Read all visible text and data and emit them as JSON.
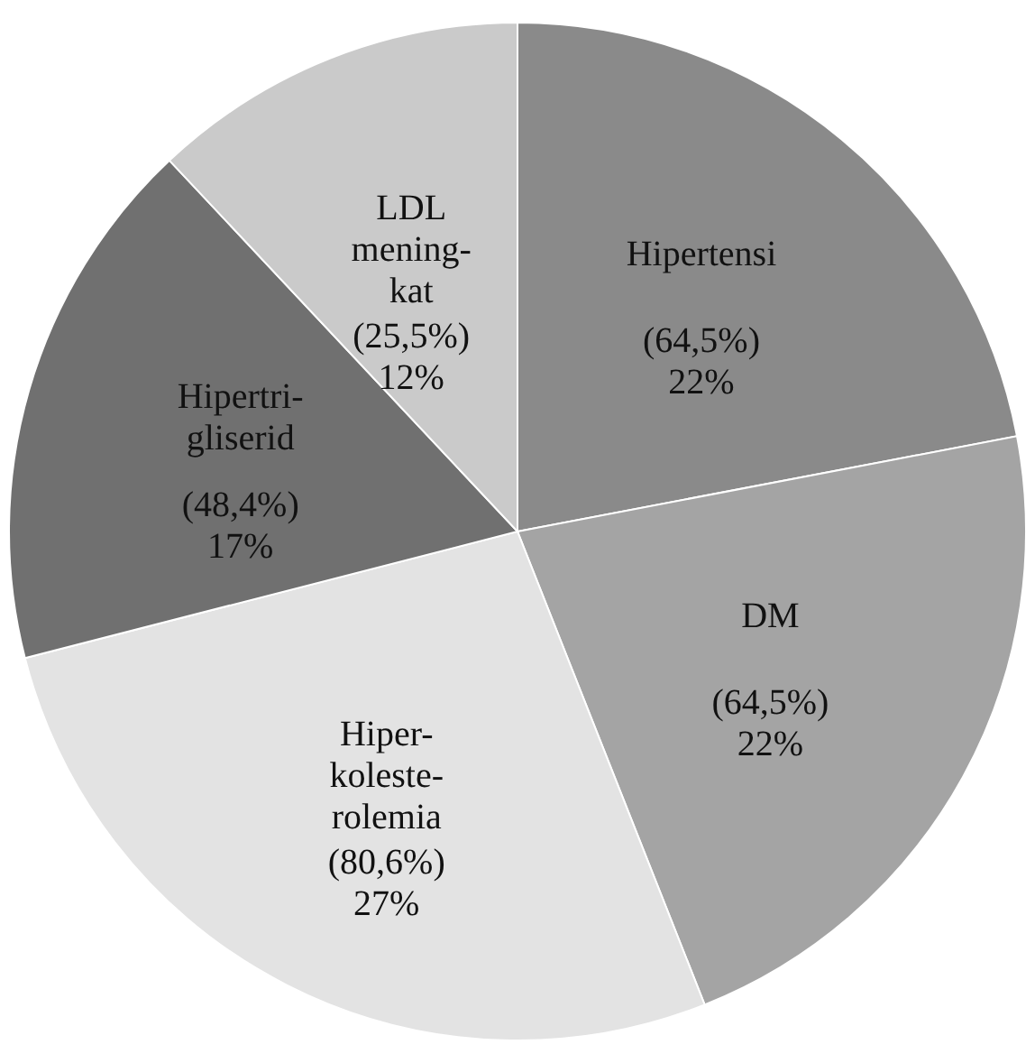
{
  "chart_data": {
    "type": "pie",
    "categories": [
      "Hipertensi",
      "DM",
      "Hiper-\nkoleste-\nrolemia",
      "Hipertri-\ngliserid",
      "LDL\nmening-\nkat"
    ],
    "values": [
      22,
      22,
      27,
      17,
      12
    ],
    "colors": [
      "#8a8a8a",
      "#a4a4a4",
      "#e3e3e3",
      "#707070",
      "#cacaca"
    ],
    "value_labels": [
      "(64,5%)\n22%",
      "(64,5%)\n22%",
      "(80,6%)\n27%",
      "(48,4%)\n17%",
      "(25,5%)\n12%"
    ],
    "legend": false
  }
}
